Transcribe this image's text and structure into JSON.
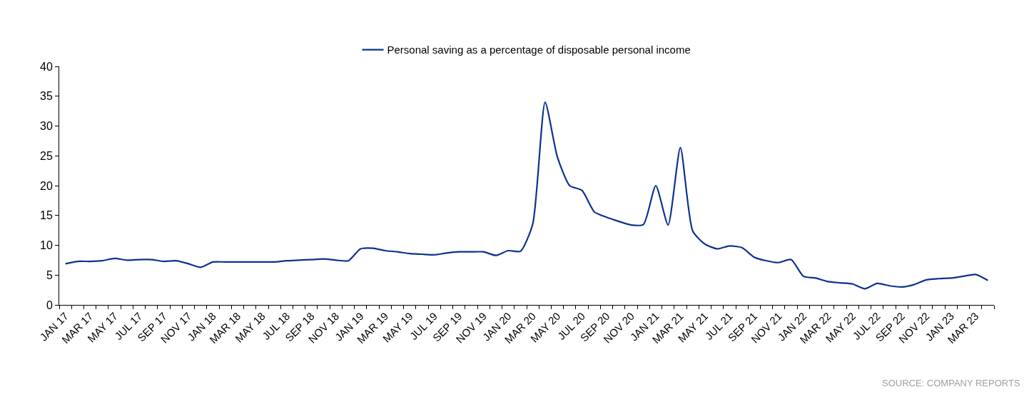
{
  "chart_data": {
    "type": "line",
    "categories": [
      "JAN 17",
      null,
      "MAR 17",
      null,
      "MAY 17",
      null,
      "JUL 17",
      null,
      "SEP 17",
      null,
      "NOV 17",
      null,
      "JAN 18",
      null,
      "MAR 18",
      null,
      "MAY 18",
      null,
      "JUL 18",
      null,
      "SEP 18",
      null,
      "NOV 18",
      null,
      "JAN 19",
      null,
      "MAR 19",
      null,
      "MAY 19",
      null,
      "JUL 19",
      null,
      "SEP 19",
      null,
      "NOV 19",
      null,
      "JAN 20",
      null,
      "MAR 20",
      null,
      "MAY 20",
      null,
      "JUL 20",
      null,
      "SEP 20",
      null,
      "NOV 20",
      null,
      "JAN 21",
      null,
      "MAR 21",
      null,
      "MAY 21",
      null,
      "JUL 21",
      null,
      "SEP 21",
      null,
      "NOV 21",
      null,
      "JAN 22",
      null,
      "MAR 22",
      null,
      "MAY 22",
      null,
      "JUL 22",
      null,
      "SEP 22",
      null,
      "NOV 22",
      null,
      "JAN 23",
      null,
      "MAR 23",
      null
    ],
    "series": [
      {
        "name": "Personal saving as a percentage of disposable personal income",
        "color": "#0c3391",
        "values": [
          6.9,
          7.3,
          7.3,
          7.4,
          7.8,
          7.5,
          7.6,
          7.6,
          7.3,
          7.4,
          6.9,
          6.3,
          7.2,
          7.2,
          7.2,
          7.2,
          7.2,
          7.2,
          7.4,
          7.5,
          7.6,
          7.7,
          7.5,
          7.4,
          9.4,
          9.5,
          9.1,
          8.9,
          8.6,
          8.5,
          8.4,
          8.7,
          8.9,
          8.9,
          8.9,
          8.3,
          9.1,
          9.0,
          13.6,
          34.0,
          24.8,
          20.0,
          19.2,
          15.6,
          14.7,
          14.0,
          13.4,
          13.5,
          20.0,
          13.4,
          26.4,
          12.4,
          10.2,
          9.4,
          9.9,
          9.6,
          8.0,
          7.4,
          7.1,
          7.6,
          4.8,
          4.5,
          3.9,
          3.7,
          3.5,
          2.7,
          3.6,
          3.2,
          3.0,
          3.4,
          4.2,
          4.4,
          4.5,
          4.8,
          5.1,
          4.1
        ]
      }
    ],
    "ylim": [
      0,
      40
    ],
    "yticks": [
      0,
      5,
      10,
      15,
      20,
      25,
      30,
      35,
      40
    ],
    "grid": false,
    "legend": "top",
    "marker": "none",
    "line_style": "solid",
    "annotations": [
      "SOURCE: COMPANY REPORTS"
    ]
  }
}
